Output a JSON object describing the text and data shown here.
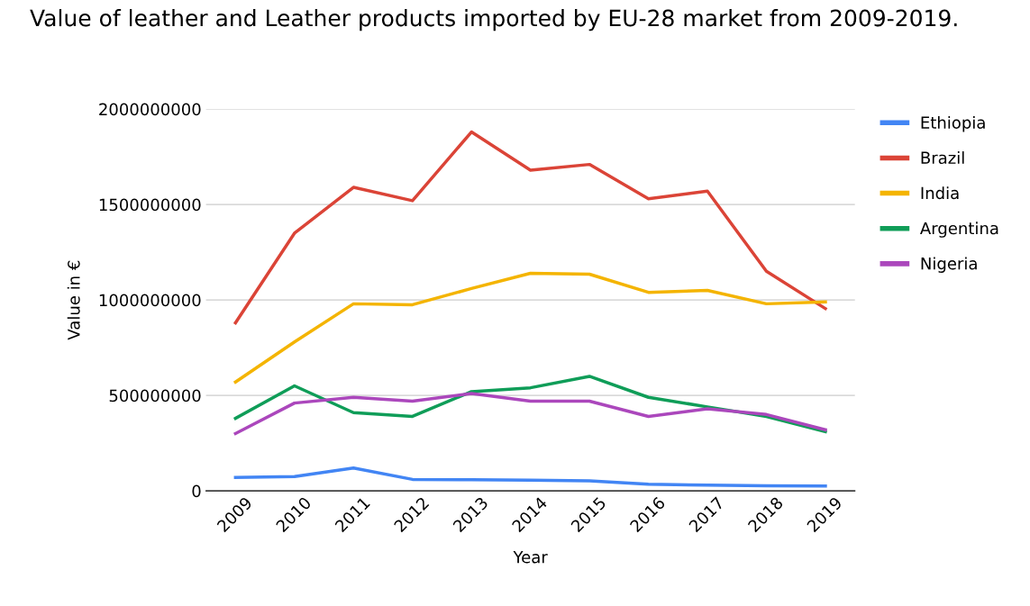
{
  "chart_data": {
    "type": "line",
    "title": "Value of leather and Leather products imported by EU-28 market from 2009-2019.",
    "xlabel": "Year",
    "ylabel": "Value in €",
    "categories": [
      "2009",
      "2010",
      "2011",
      "2012",
      "2013",
      "2014",
      "2015",
      "2016",
      "2017",
      "2018",
      "2019"
    ],
    "series": [
      {
        "name": "Ethiopia",
        "color": "#4285f4",
        "values": [
          70000000,
          75000000,
          120000000,
          60000000,
          58000000,
          56000000,
          53000000,
          35000000,
          30000000,
          27000000,
          25000000
        ]
      },
      {
        "name": "Brazil",
        "color": "#db4437",
        "values": [
          880000000,
          1350000000,
          1590000000,
          1520000000,
          1880000000,
          1680000000,
          1710000000,
          1530000000,
          1570000000,
          1150000000,
          955000000
        ]
      },
      {
        "name": "India",
        "color": "#f4b400",
        "values": [
          570000000,
          780000000,
          980000000,
          975000000,
          1060000000,
          1140000000,
          1135000000,
          1040000000,
          1050000000,
          980000000,
          990000000
        ]
      },
      {
        "name": "Argentina",
        "color": "#0f9d58",
        "values": [
          380000000,
          550000000,
          410000000,
          390000000,
          520000000,
          540000000,
          600000000,
          490000000,
          440000000,
          390000000,
          310000000
        ]
      },
      {
        "name": "Nigeria",
        "color": "#ab47bc",
        "values": [
          300000000,
          460000000,
          490000000,
          470000000,
          510000000,
          470000000,
          470000000,
          390000000,
          430000000,
          400000000,
          320000000
        ]
      }
    ],
    "ylim": [
      0,
      2000000000
    ],
    "yticks": [
      0,
      500000000,
      1000000000,
      1500000000,
      2000000000
    ],
    "grid": "y",
    "legend": "right",
    "marker": "none",
    "line_style": "solid"
  }
}
